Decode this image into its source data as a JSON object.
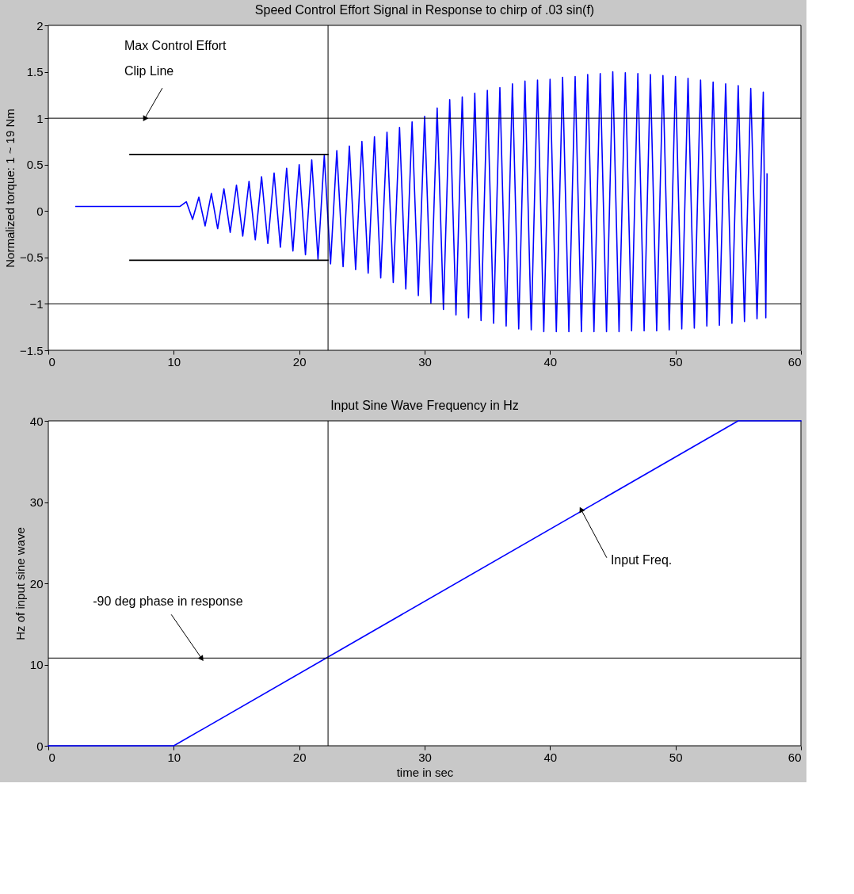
{
  "chart_data": [
    {
      "type": "line",
      "title": "Speed Control Effort Signal in Response to chirp of .03 sin(f)",
      "ylabel": "Normalized torque: 1 ~ 19 Nm",
      "xlim": [
        0,
        60
      ],
      "xticks": [
        0,
        10,
        20,
        30,
        40,
        50,
        60
      ],
      "ylim": [
        -1.5,
        2
      ],
      "yticks": [
        -1.5,
        -1,
        -0.5,
        0,
        0.5,
        1,
        1.5,
        2
      ],
      "line_style": "solid",
      "series": [
        {
          "color": "#0000ff",
          "x": [
            2.2,
            10.5,
            11,
            11.5,
            12,
            12.5,
            13,
            13.5,
            14,
            14.5,
            15,
            15.5,
            16,
            16.5,
            17,
            17.5,
            18,
            18.5,
            19,
            19.5,
            20,
            20.5,
            21,
            21.5,
            22,
            22.5,
            23,
            23.5,
            24,
            24.5,
            25,
            25.5,
            26,
            26.5,
            27,
            27.5,
            28,
            28.5,
            29,
            29.5,
            30,
            30.5,
            31,
            31.5,
            32,
            32.5,
            33,
            33.5,
            34,
            34.5,
            35,
            35.5,
            36,
            36.5,
            37,
            37.5,
            38,
            38.5,
            39,
            39.5,
            40,
            40.5,
            41,
            41.5,
            42,
            42.5,
            43,
            43.5,
            44,
            44.5,
            45,
            45.5,
            46,
            46.5,
            47,
            47.5,
            48,
            48.5,
            49,
            49.5,
            50,
            50.5,
            51,
            51.5,
            52,
            52.5,
            53,
            53.5,
            54,
            54.5,
            55,
            55.5,
            56,
            56.5,
            57,
            57.2,
            57.3
          ],
          "values": [
            0.05,
            0.05,
            0.1,
            -0.09,
            0.15,
            -0.16,
            0.19,
            -0.19,
            0.24,
            -0.23,
            0.28,
            -0.27,
            0.32,
            -0.31,
            0.37,
            -0.35,
            0.41,
            -0.39,
            0.46,
            -0.43,
            0.5,
            -0.47,
            0.55,
            -0.52,
            0.6,
            -0.57,
            0.65,
            -0.6,
            0.7,
            -0.63,
            0.75,
            -0.67,
            0.8,
            -0.72,
            0.85,
            -0.77,
            0.9,
            -0.84,
            0.96,
            -0.91,
            1.02,
            -0.99,
            1.11,
            -1.06,
            1.2,
            -1.12,
            1.23,
            -1.15,
            1.27,
            -1.18,
            1.3,
            -1.21,
            1.33,
            -1.24,
            1.37,
            -1.27,
            1.4,
            -1.28,
            1.41,
            -1.3,
            1.42,
            -1.3,
            1.44,
            -1.3,
            1.45,
            -1.3,
            1.47,
            -1.3,
            1.48,
            -1.3,
            1.5,
            -1.3,
            1.49,
            -1.29,
            1.48,
            -1.29,
            1.47,
            -1.29,
            1.46,
            -1.28,
            1.45,
            -1.27,
            1.43,
            -1.26,
            1.41,
            -1.24,
            1.39,
            -1.23,
            1.37,
            -1.21,
            1.35,
            -1.19,
            1.32,
            -1.16,
            1.28,
            -1.15,
            0.4
          ]
        },
        {
          "type": "line",
          "color": "#000000",
          "x": [
            6.5,
            22.3
          ],
          "values": [
            0.61,
            0.61
          ]
        },
        {
          "type": "line",
          "color": "#000000",
          "x": [
            6.5,
            22.3
          ],
          "values": [
            -0.53,
            -0.53
          ]
        }
      ],
      "ref_lines": [
        {
          "axis": "y",
          "value": 1,
          "color": "#000000"
        },
        {
          "axis": "y",
          "value": -1,
          "color": "#000000"
        },
        {
          "axis": "x",
          "value": 22.3,
          "color": "#000000"
        }
      ],
      "annotations": [
        {
          "text": "Max Control Effort\nClip Line",
          "x": 7.7,
          "y": 1
        }
      ]
    },
    {
      "type": "line",
      "title": "Input Sine Wave Frequency in Hz",
      "xlabel": "time in sec",
      "ylabel": "Hz of input sine wave",
      "xlim": [
        0,
        60
      ],
      "xticks": [
        0,
        10,
        20,
        30,
        40,
        50,
        60
      ],
      "ylim": [
        0,
        40
      ],
      "yticks": [
        0,
        10,
        20,
        30,
        40
      ],
      "line_style": "solid",
      "series": [
        {
          "color": "#0000ff",
          "x": [
            0,
            10,
            55,
            60
          ],
          "values": [
            0,
            0,
            40,
            40
          ]
        }
      ],
      "ref_lines": [
        {
          "axis": "y",
          "value": 10.8,
          "color": "#000000"
        },
        {
          "axis": "x",
          "value": 22.3,
          "color": "#000000"
        }
      ],
      "annotations": [
        {
          "text": "-90 deg phase in response",
          "x": 12.2,
          "y": 10.8
        },
        {
          "text": "Input Freq.",
          "x": 42.5,
          "y": 29
        }
      ]
    }
  ]
}
